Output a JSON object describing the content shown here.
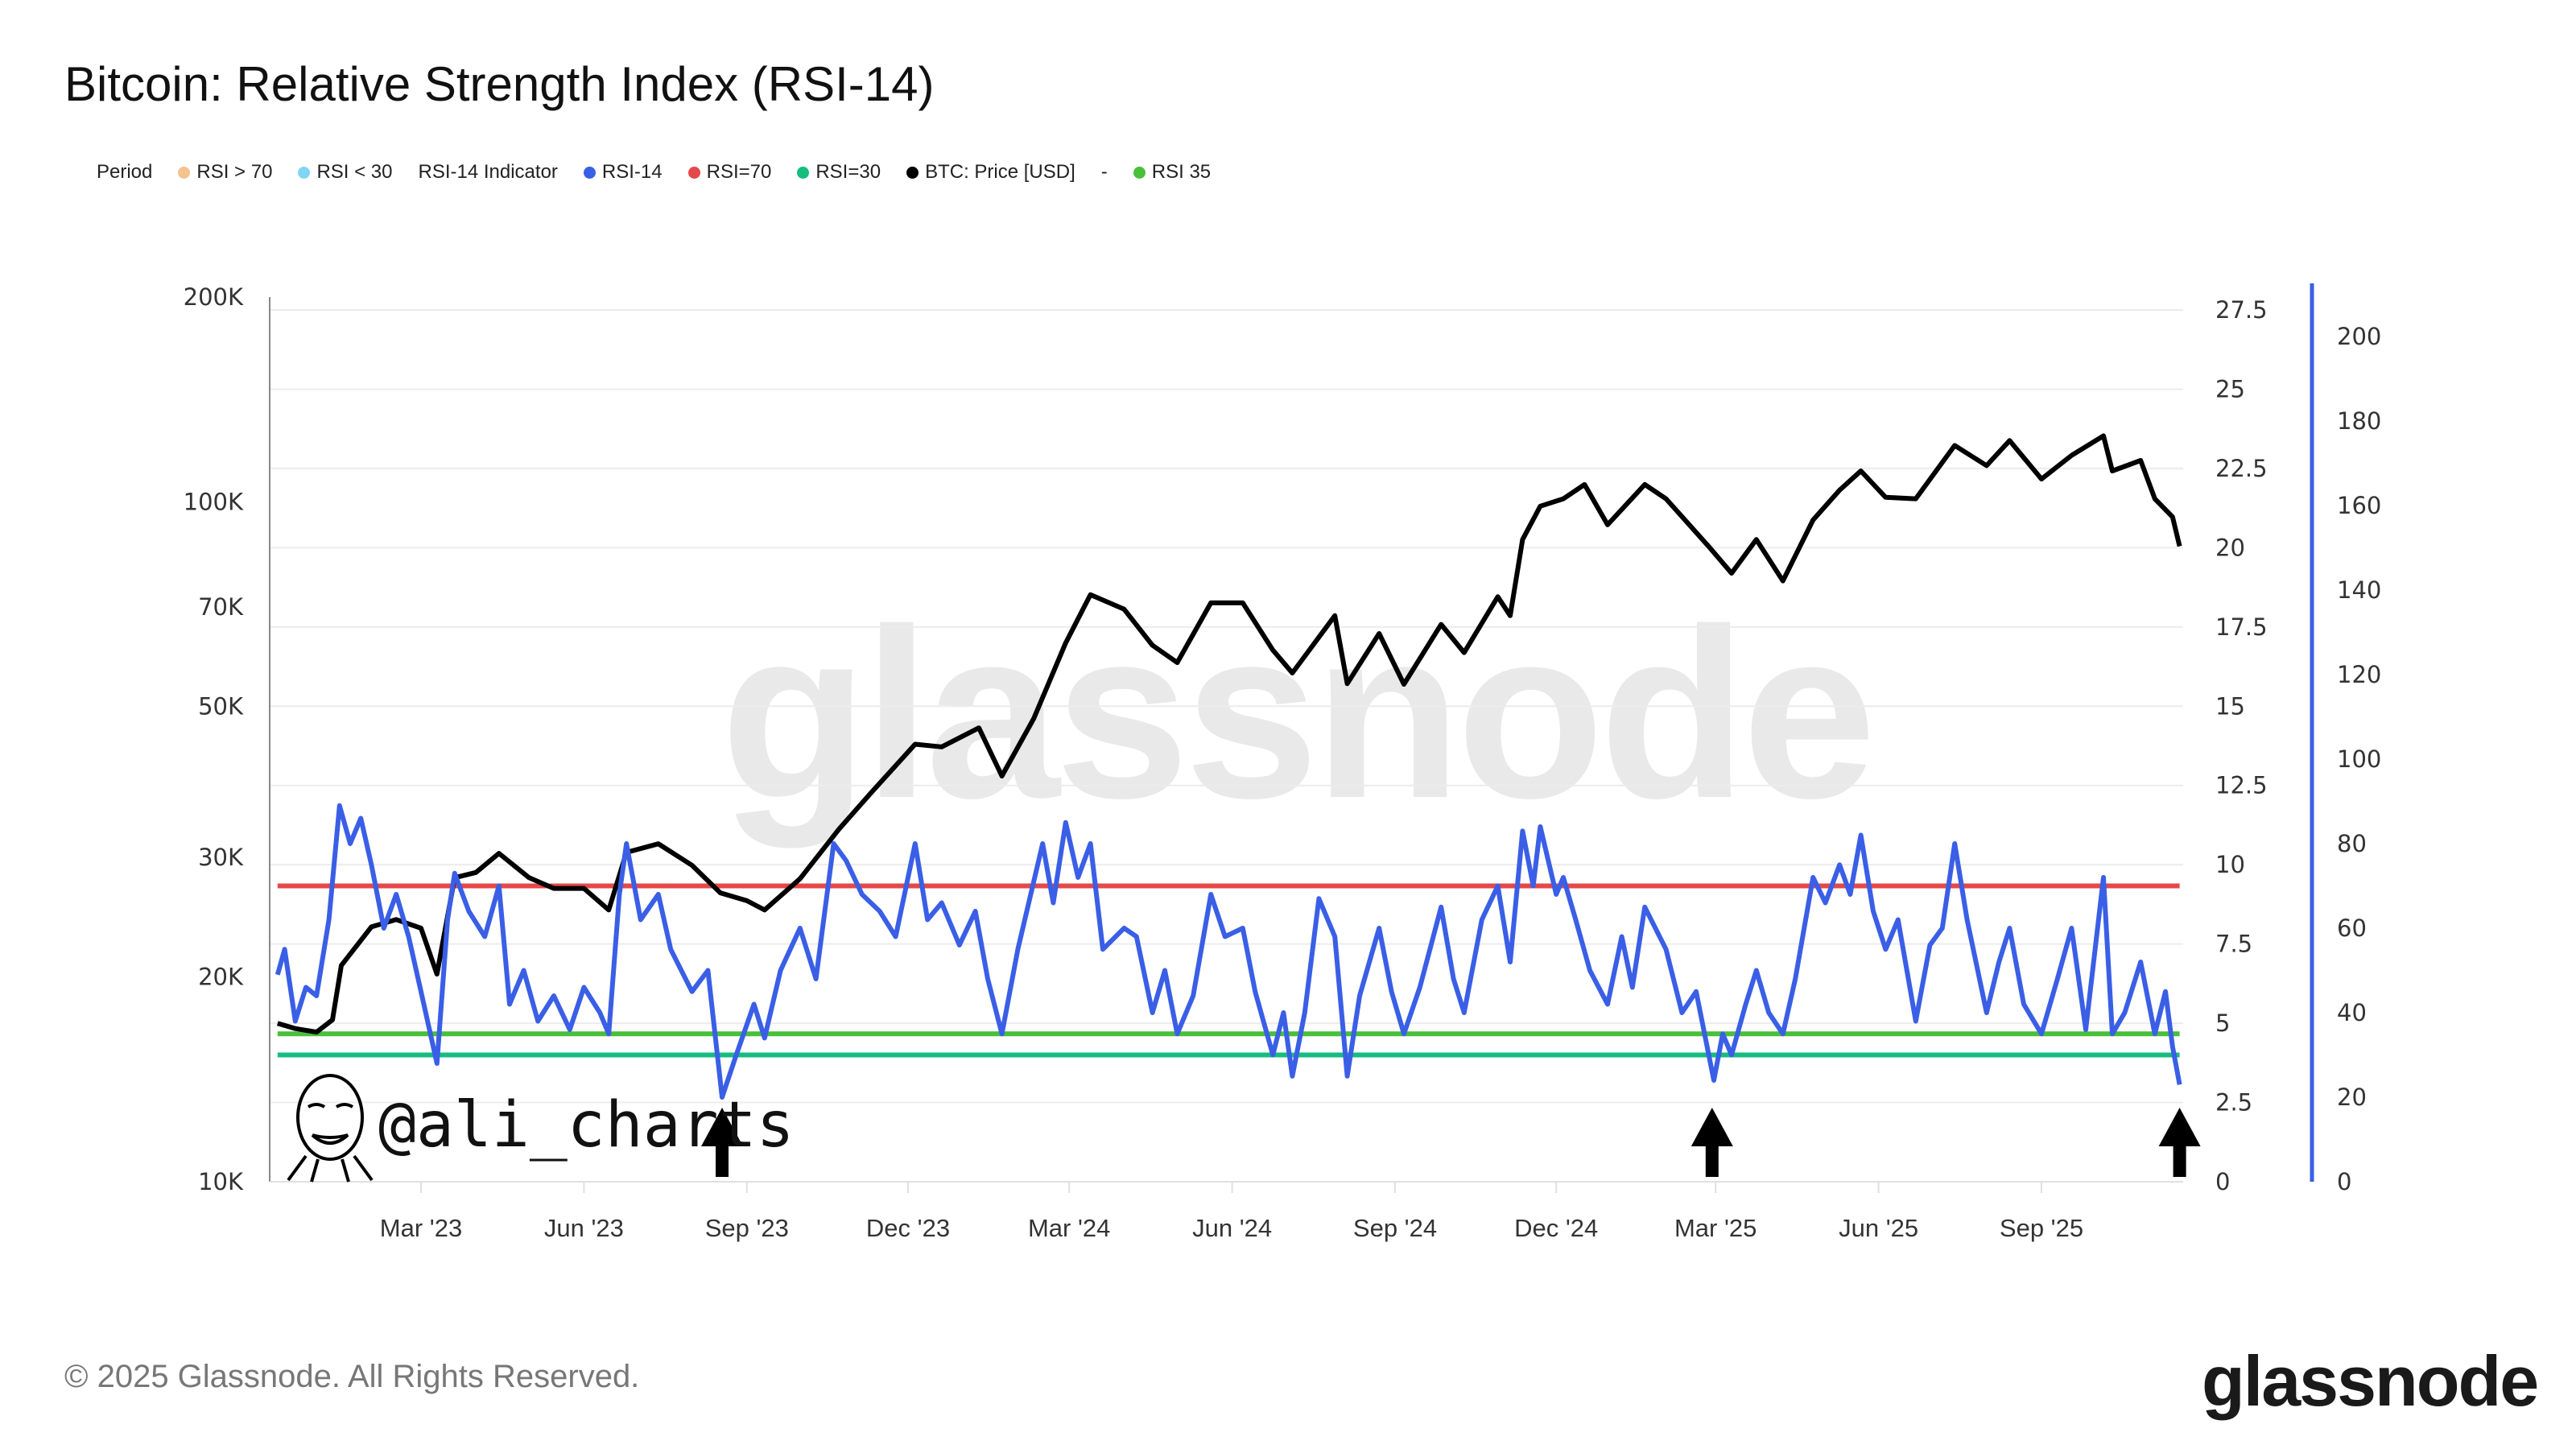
{
  "title": "Bitcoin: Relative Strength Index (RSI-14)",
  "legend": [
    {
      "label": "Period",
      "color": null
    },
    {
      "label": "RSI > 70",
      "color": "#f5c38e"
    },
    {
      "label": "RSI < 30",
      "color": "#82d4f7"
    },
    {
      "label": "RSI-14 Indicator",
      "color": null
    },
    {
      "label": "RSI-14",
      "color": "#3a5fe6"
    },
    {
      "label": "RSI=70",
      "color": "#e54848"
    },
    {
      "label": "RSI=30",
      "color": "#15bd7f"
    },
    {
      "label": "BTC: Price [USD]",
      "color": "#000000"
    },
    {
      "label": "-",
      "color": null
    },
    {
      "label": "RSI 35",
      "color": "#48c03a"
    }
  ],
  "watermark": "glassnode",
  "handle": "@ali_charts",
  "footer": "© 2025 Glassnode. All Rights Reserved.",
  "logo": "glassnode",
  "chart_data": {
    "type": "line",
    "title": "Bitcoin: Relative Strength Index (RSI-14)",
    "x_range": [
      "2022-12-10",
      "2025-11-18"
    ],
    "x_ticks": [
      {
        "label": "Mar '23",
        "date": "2023-03-01"
      },
      {
        "label": "Jun '23",
        "date": "2023-06-01"
      },
      {
        "label": "Sep '23",
        "date": "2023-09-01"
      },
      {
        "label": "Dec '23",
        "date": "2023-12-01"
      },
      {
        "label": "Mar '24",
        "date": "2024-03-01"
      },
      {
        "label": "Jun '24",
        "date": "2024-06-01"
      },
      {
        "label": "Sep '24",
        "date": "2024-09-01"
      },
      {
        "label": "Dec '24",
        "date": "2024-12-01"
      },
      {
        "label": "Mar '25",
        "date": "2025-03-01"
      },
      {
        "label": "Jun '25",
        "date": "2025-06-01"
      },
      {
        "label": "Sep '25",
        "date": "2025-09-01"
      }
    ],
    "price_axis": {
      "scale": "log",
      "range": [
        10000,
        200000
      ],
      "ticks": [
        {
          "label": "200K",
          "value": 200000
        },
        {
          "label": "100K",
          "value": 100000
        },
        {
          "label": "70K",
          "value": 70000
        },
        {
          "label": "50K",
          "value": 50000
        },
        {
          "label": "30K",
          "value": 30000
        },
        {
          "label": "20K",
          "value": 20000
        },
        {
          "label": "10K",
          "value": 10000
        }
      ]
    },
    "middle_axis": {
      "range": [
        0,
        27.5
      ],
      "ticks": [
        "0",
        "2.5",
        "5",
        "7.5",
        "10",
        "12.5",
        "15",
        "17.5",
        "20",
        "22.5",
        "25",
        "27.5"
      ]
    },
    "rsi_axis": {
      "range": [
        0,
        200
      ],
      "ticks": [
        "0",
        "20",
        "40",
        "60",
        "80",
        "100",
        "120",
        "140",
        "160",
        "180",
        "200"
      ],
      "color": "#3a5fe6"
    },
    "grid": true,
    "reference_lines": [
      {
        "name": "RSI=70",
        "value": 70,
        "color": "#e54848"
      },
      {
        "name": "RSI 35",
        "value": 35,
        "color": "#48c03a"
      },
      {
        "name": "RSI=30",
        "value": 30,
        "color": "#15bd7f"
      }
    ],
    "series": [
      {
        "name": "BTC: Price [USD]",
        "color": "#000000",
        "axis": "price",
        "points": [
          [
            "2022-12-10",
            17100
          ],
          [
            "2022-12-20",
            16800
          ],
          [
            "2023-01-01",
            16600
          ],
          [
            "2023-01-10",
            17300
          ],
          [
            "2023-01-15",
            20800
          ],
          [
            "2023-02-01",
            23700
          ],
          [
            "2023-02-15",
            24300
          ],
          [
            "2023-03-01",
            23600
          ],
          [
            "2023-03-10",
            20200
          ],
          [
            "2023-03-20",
            28000
          ],
          [
            "2023-04-01",
            28500
          ],
          [
            "2023-04-14",
            30400
          ],
          [
            "2023-05-01",
            28000
          ],
          [
            "2023-05-15",
            27000
          ],
          [
            "2023-06-01",
            27000
          ],
          [
            "2023-06-15",
            25100
          ],
          [
            "2023-06-25",
            30500
          ],
          [
            "2023-07-13",
            31400
          ],
          [
            "2023-08-01",
            29200
          ],
          [
            "2023-08-17",
            26600
          ],
          [
            "2023-09-01",
            25900
          ],
          [
            "2023-09-11",
            25100
          ],
          [
            "2023-10-01",
            27900
          ],
          [
            "2023-10-23",
            33000
          ],
          [
            "2023-11-10",
            37300
          ],
          [
            "2023-12-05",
            44000
          ],
          [
            "2023-12-20",
            43600
          ],
          [
            "2024-01-10",
            46500
          ],
          [
            "2024-01-23",
            39500
          ],
          [
            "2024-02-10",
            48000
          ],
          [
            "2024-02-28",
            62000
          ],
          [
            "2024-03-13",
            73000
          ],
          [
            "2024-04-01",
            69500
          ],
          [
            "2024-04-17",
            61500
          ],
          [
            "2024-05-01",
            58000
          ],
          [
            "2024-05-20",
            71000
          ],
          [
            "2024-06-07",
            71000
          ],
          [
            "2024-06-24",
            60500
          ],
          [
            "2024-07-05",
            56000
          ],
          [
            "2024-07-29",
            68000
          ],
          [
            "2024-08-05",
            54000
          ],
          [
            "2024-08-23",
            64000
          ],
          [
            "2024-09-06",
            53900
          ],
          [
            "2024-09-27",
            66000
          ],
          [
            "2024-10-10",
            60000
          ],
          [
            "2024-10-29",
            72500
          ],
          [
            "2024-11-05",
            68000
          ],
          [
            "2024-11-12",
            88000
          ],
          [
            "2024-11-22",
            98500
          ],
          [
            "2024-12-05",
            101000
          ],
          [
            "2024-12-17",
            106000
          ],
          [
            "2024-12-30",
            92500
          ],
          [
            "2025-01-20",
            106000
          ],
          [
            "2025-02-01",
            101000
          ],
          [
            "2025-02-25",
            86000
          ],
          [
            "2025-03-10",
            78500
          ],
          [
            "2025-03-24",
            88000
          ],
          [
            "2025-04-08",
            76500
          ],
          [
            "2025-04-25",
            94000
          ],
          [
            "2025-05-10",
            104000
          ],
          [
            "2025-05-22",
            111000
          ],
          [
            "2025-06-05",
            101500
          ],
          [
            "2025-06-22",
            101000
          ],
          [
            "2025-07-14",
            121000
          ],
          [
            "2025-08-01",
            113000
          ],
          [
            "2025-08-14",
            123000
          ],
          [
            "2025-09-01",
            108000
          ],
          [
            "2025-09-18",
            117000
          ],
          [
            "2025-10-06",
            125000
          ],
          [
            "2025-10-11",
            111000
          ],
          [
            "2025-10-27",
            115000
          ],
          [
            "2025-11-04",
            101000
          ],
          [
            "2025-11-14",
            95000
          ],
          [
            "2025-11-18",
            86000
          ]
        ]
      },
      {
        "name": "RSI-14",
        "color": "#3a5fe6",
        "axis": "rsi",
        "points": [
          [
            "2022-12-10",
            49
          ],
          [
            "2022-12-14",
            55
          ],
          [
            "2022-12-20",
            38
          ],
          [
            "2022-12-26",
            46
          ],
          [
            "2023-01-01",
            44
          ],
          [
            "2023-01-08",
            62
          ],
          [
            "2023-01-14",
            89
          ],
          [
            "2023-01-20",
            80
          ],
          [
            "2023-01-26",
            86
          ],
          [
            "2023-02-01",
            75
          ],
          [
            "2023-02-08",
            60
          ],
          [
            "2023-02-15",
            68
          ],
          [
            "2023-02-22",
            58
          ],
          [
            "2023-03-01",
            45
          ],
          [
            "2023-03-10",
            28
          ],
          [
            "2023-03-16",
            62
          ],
          [
            "2023-03-20",
            73
          ],
          [
            "2023-03-28",
            64
          ],
          [
            "2023-04-06",
            58
          ],
          [
            "2023-04-14",
            70
          ],
          [
            "2023-04-20",
            42
          ],
          [
            "2023-04-28",
            50
          ],
          [
            "2023-05-06",
            38
          ],
          [
            "2023-05-15",
            44
          ],
          [
            "2023-05-24",
            36
          ],
          [
            "2023-06-01",
            46
          ],
          [
            "2023-06-10",
            40
          ],
          [
            "2023-06-15",
            35
          ],
          [
            "2023-06-21",
            68
          ],
          [
            "2023-06-25",
            80
          ],
          [
            "2023-07-03",
            62
          ],
          [
            "2023-07-13",
            68
          ],
          [
            "2023-07-20",
            55
          ],
          [
            "2023-08-01",
            45
          ],
          [
            "2023-08-10",
            50
          ],
          [
            "2023-08-18",
            20
          ],
          [
            "2023-08-26",
            30
          ],
          [
            "2023-09-05",
            42
          ],
          [
            "2023-09-11",
            34
          ],
          [
            "2023-09-20",
            50
          ],
          [
            "2023-10-01",
            60
          ],
          [
            "2023-10-10",
            48
          ],
          [
            "2023-10-20",
            80
          ],
          [
            "2023-10-27",
            76
          ],
          [
            "2023-11-05",
            68
          ],
          [
            "2023-11-15",
            64
          ],
          [
            "2023-11-24",
            58
          ],
          [
            "2023-12-05",
            80
          ],
          [
            "2023-12-12",
            62
          ],
          [
            "2023-12-20",
            66
          ],
          [
            "2023-12-30",
            56
          ],
          [
            "2024-01-08",
            64
          ],
          [
            "2024-01-15",
            48
          ],
          [
            "2024-01-23",
            35
          ],
          [
            "2024-02-01",
            55
          ],
          [
            "2024-02-15",
            80
          ],
          [
            "2024-02-21",
            66
          ],
          [
            "2024-02-28",
            85
          ],
          [
            "2024-03-06",
            72
          ],
          [
            "2024-03-13",
            80
          ],
          [
            "2024-03-20",
            55
          ],
          [
            "2024-04-01",
            60
          ],
          [
            "2024-04-08",
            58
          ],
          [
            "2024-04-17",
            40
          ],
          [
            "2024-04-24",
            50
          ],
          [
            "2024-05-01",
            35
          ],
          [
            "2024-05-10",
            44
          ],
          [
            "2024-05-20",
            68
          ],
          [
            "2024-05-28",
            58
          ],
          [
            "2024-06-07",
            60
          ],
          [
            "2024-06-14",
            45
          ],
          [
            "2024-06-24",
            30
          ],
          [
            "2024-06-30",
            40
          ],
          [
            "2024-07-05",
            25
          ],
          [
            "2024-07-12",
            40
          ],
          [
            "2024-07-20",
            67
          ],
          [
            "2024-07-29",
            58
          ],
          [
            "2024-08-05",
            25
          ],
          [
            "2024-08-12",
            44
          ],
          [
            "2024-08-23",
            60
          ],
          [
            "2024-08-30",
            45
          ],
          [
            "2024-09-06",
            35
          ],
          [
            "2024-09-15",
            46
          ],
          [
            "2024-09-27",
            65
          ],
          [
            "2024-10-04",
            48
          ],
          [
            "2024-10-10",
            40
          ],
          [
            "2024-10-20",
            62
          ],
          [
            "2024-10-29",
            70
          ],
          [
            "2024-11-05",
            52
          ],
          [
            "2024-11-12",
            83
          ],
          [
            "2024-11-18",
            70
          ],
          [
            "2024-11-22",
            84
          ],
          [
            "2024-12-01",
            68
          ],
          [
            "2024-12-05",
            72
          ],
          [
            "2024-12-12",
            62
          ],
          [
            "2024-12-20",
            50
          ],
          [
            "2024-12-30",
            42
          ],
          [
            "2025-01-07",
            58
          ],
          [
            "2025-01-13",
            46
          ],
          [
            "2025-01-20",
            65
          ],
          [
            "2025-02-01",
            55
          ],
          [
            "2025-02-10",
            40
          ],
          [
            "2025-02-18",
            45
          ],
          [
            "2025-02-28",
            24
          ],
          [
            "2025-03-05",
            35
          ],
          [
            "2025-03-10",
            30
          ],
          [
            "2025-03-18",
            42
          ],
          [
            "2025-03-24",
            50
          ],
          [
            "2025-03-31",
            40
          ],
          [
            "2025-04-08",
            35
          ],
          [
            "2025-04-15",
            48
          ],
          [
            "2025-04-25",
            72
          ],
          [
            "2025-05-02",
            66
          ],
          [
            "2025-05-10",
            75
          ],
          [
            "2025-05-16",
            68
          ],
          [
            "2025-05-22",
            82
          ],
          [
            "2025-05-29",
            64
          ],
          [
            "2025-06-05",
            55
          ],
          [
            "2025-06-12",
            62
          ],
          [
            "2025-06-22",
            38
          ],
          [
            "2025-06-30",
            56
          ],
          [
            "2025-07-07",
            60
          ],
          [
            "2025-07-14",
            80
          ],
          [
            "2025-07-21",
            62
          ],
          [
            "2025-08-01",
            40
          ],
          [
            "2025-08-08",
            52
          ],
          [
            "2025-08-14",
            60
          ],
          [
            "2025-08-22",
            42
          ],
          [
            "2025-09-01",
            35
          ],
          [
            "2025-09-10",
            48
          ],
          [
            "2025-09-18",
            60
          ],
          [
            "2025-09-26",
            36
          ],
          [
            "2025-10-06",
            72
          ],
          [
            "2025-10-11",
            35
          ],
          [
            "2025-10-18",
            40
          ],
          [
            "2025-10-27",
            52
          ],
          [
            "2025-11-04",
            35
          ],
          [
            "2025-11-10",
            45
          ],
          [
            "2025-11-14",
            32
          ],
          [
            "2025-11-18",
            23
          ]
        ]
      }
    ],
    "annotations": [
      {
        "type": "arrow-up",
        "date": "2023-08-18"
      },
      {
        "type": "arrow-up",
        "date": "2025-02-27"
      },
      {
        "type": "arrow-up",
        "date": "2025-11-18"
      }
    ]
  }
}
